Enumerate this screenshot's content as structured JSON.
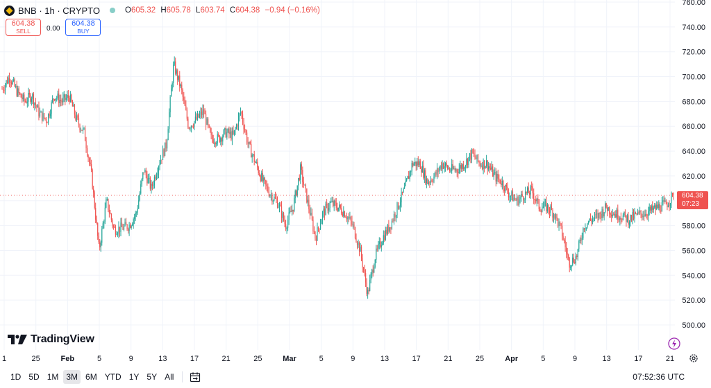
{
  "header": {
    "symbol": "BNB",
    "interval": "1h",
    "exchange": "CRYPTO",
    "title": "BNB · 1h · CRYPTO",
    "o_label": "O",
    "o_value": "605.32",
    "h_label": "H",
    "h_value": "605.78",
    "l_label": "L",
    "l_value": "603.74",
    "c_label": "C",
    "c_value": "604.38",
    "change": "−0.94 (−0.16%)"
  },
  "trade": {
    "sell_price": "604.38",
    "sell_label": "SELL",
    "spread": "0.00",
    "buy_price": "604.38",
    "buy_label": "BUY"
  },
  "brand": {
    "name": "TradingView"
  },
  "price_tag": {
    "price": "604.38",
    "countdown": "07:23"
  },
  "bottom": {
    "ranges": [
      "1D",
      "5D",
      "1M",
      "3M",
      "6M",
      "YTD",
      "1Y",
      "5Y",
      "All"
    ],
    "active_range": "3M",
    "clock": "07:52:36 UTC"
  },
  "colors": {
    "up": "#26a69a",
    "down": "#ef5350",
    "last_price": "#ef5350"
  },
  "icons": [
    "bnb-coin-icon",
    "market-status-icon",
    "calendar-range-icon",
    "settings-gear-icon",
    "lightning-icon"
  ],
  "chart_data": {
    "type": "candlestick",
    "symbol": "BNB",
    "interval": "1h",
    "ylim": [
      500,
      760
    ],
    "y_ticks": [
      500,
      520,
      540,
      560,
      580,
      600,
      620,
      640,
      660,
      680,
      700,
      720,
      740,
      760
    ],
    "y_tick_labels": [
      "500.00",
      "520.00",
      "540.00",
      "560.00",
      "580.00",
      "600.00",
      "620.00",
      "640.00",
      "660.00",
      "680.00",
      "700.00",
      "720.00",
      "740.00",
      "760.00"
    ],
    "x_tick_labels": [
      "1",
      "25",
      "Feb",
      "5",
      "9",
      "13",
      "17",
      "21",
      "25",
      "Mar",
      "5",
      "9",
      "13",
      "17",
      "21",
      "25",
      "Apr",
      "5",
      "9",
      "13",
      "17",
      "21"
    ],
    "last_price": 604.38,
    "grid": true,
    "price_path": [
      {
        "date": "Jan 21",
        "price": 690
      },
      {
        "date": "Jan 22",
        "price": 700
      },
      {
        "date": "Jan 23",
        "price": 688
      },
      {
        "date": "Jan 24",
        "price": 680
      },
      {
        "date": "Jan 25",
        "price": 685
      },
      {
        "date": "Jan 26",
        "price": 670
      },
      {
        "date": "Jan 27",
        "price": 665
      },
      {
        "date": "Jan 28",
        "price": 685
      },
      {
        "date": "Jan 29",
        "price": 680
      },
      {
        "date": "Jan 30",
        "price": 684
      },
      {
        "date": "Jan 31",
        "price": 665
      },
      {
        "date": "Feb 1",
        "price": 655
      },
      {
        "date": "Feb 2",
        "price": 620
      },
      {
        "date": "Feb 3",
        "price": 560
      },
      {
        "date": "Feb 4",
        "price": 600
      },
      {
        "date": "Feb 5",
        "price": 577
      },
      {
        "date": "Feb 6",
        "price": 578
      },
      {
        "date": "Feb 7",
        "price": 580
      },
      {
        "date": "Feb 8",
        "price": 590
      },
      {
        "date": "Feb 9",
        "price": 625
      },
      {
        "date": "Feb 10",
        "price": 610
      },
      {
        "date": "Feb 11",
        "price": 630
      },
      {
        "date": "Feb 12",
        "price": 645
      },
      {
        "date": "Feb 13",
        "price": 710
      },
      {
        "date": "Feb 14",
        "price": 690
      },
      {
        "date": "Feb 15",
        "price": 660
      },
      {
        "date": "Feb 16",
        "price": 665
      },
      {
        "date": "Feb 17",
        "price": 672
      },
      {
        "date": "Feb 18",
        "price": 650
      },
      {
        "date": "Feb 19",
        "price": 650
      },
      {
        "date": "Feb 20",
        "price": 655
      },
      {
        "date": "Feb 21",
        "price": 652
      },
      {
        "date": "Feb 22",
        "price": 672
      },
      {
        "date": "Feb 23",
        "price": 645
      },
      {
        "date": "Feb 24",
        "price": 630
      },
      {
        "date": "Feb 25",
        "price": 615
      },
      {
        "date": "Feb 26",
        "price": 605
      },
      {
        "date": "Feb 27",
        "price": 598
      },
      {
        "date": "Feb 28",
        "price": 580
      },
      {
        "date": "Mar 1",
        "price": 595
      },
      {
        "date": "Mar 2",
        "price": 625
      },
      {
        "date": "Mar 3",
        "price": 598
      },
      {
        "date": "Mar 4",
        "price": 570
      },
      {
        "date": "Mar 5",
        "price": 590
      },
      {
        "date": "Mar 6",
        "price": 598
      },
      {
        "date": "Mar 7",
        "price": 595
      },
      {
        "date": "Mar 8",
        "price": 590
      },
      {
        "date": "Mar 9",
        "price": 580
      },
      {
        "date": "Mar 10",
        "price": 560
      },
      {
        "date": "Mar 11",
        "price": 525
      },
      {
        "date": "Mar 12",
        "price": 555
      },
      {
        "date": "Mar 13",
        "price": 570
      },
      {
        "date": "Mar 14",
        "price": 580
      },
      {
        "date": "Mar 15",
        "price": 595
      },
      {
        "date": "Mar 16",
        "price": 610
      },
      {
        "date": "Mar 17",
        "price": 630
      },
      {
        "date": "Mar 18",
        "price": 630
      },
      {
        "date": "Mar 19",
        "price": 615
      },
      {
        "date": "Mar 20",
        "price": 620
      },
      {
        "date": "Mar 21",
        "price": 630
      },
      {
        "date": "Mar 22",
        "price": 625
      },
      {
        "date": "Mar 23",
        "price": 625
      },
      {
        "date": "Mar 24",
        "price": 630
      },
      {
        "date": "Mar 25",
        "price": 638
      },
      {
        "date": "Mar 26",
        "price": 630
      },
      {
        "date": "Mar 27",
        "price": 630
      },
      {
        "date": "Mar 28",
        "price": 620
      },
      {
        "date": "Mar 29",
        "price": 615
      },
      {
        "date": "Mar 30",
        "price": 605
      },
      {
        "date": "Mar 31",
        "price": 600
      },
      {
        "date": "Apr 1",
        "price": 605
      },
      {
        "date": "Apr 2",
        "price": 608
      },
      {
        "date": "Apr 3",
        "price": 595
      },
      {
        "date": "Apr 4",
        "price": 595
      },
      {
        "date": "Apr 5",
        "price": 590
      },
      {
        "date": "Apr 6",
        "price": 575
      },
      {
        "date": "Apr 7",
        "price": 550
      },
      {
        "date": "Apr 8",
        "price": 555
      },
      {
        "date": "Apr 9",
        "price": 580
      },
      {
        "date": "Apr 10",
        "price": 585
      },
      {
        "date": "Apr 11",
        "price": 588
      },
      {
        "date": "Apr 12",
        "price": 595
      },
      {
        "date": "Apr 13",
        "price": 590
      },
      {
        "date": "Apr 14",
        "price": 588
      },
      {
        "date": "Apr 15",
        "price": 585
      },
      {
        "date": "Apr 16",
        "price": 588
      },
      {
        "date": "Apr 17",
        "price": 590
      },
      {
        "date": "Apr 18",
        "price": 592
      },
      {
        "date": "Apr 19",
        "price": 595
      },
      {
        "date": "Apr 20",
        "price": 597
      },
      {
        "date": "Apr 21",
        "price": 604.38
      }
    ]
  }
}
